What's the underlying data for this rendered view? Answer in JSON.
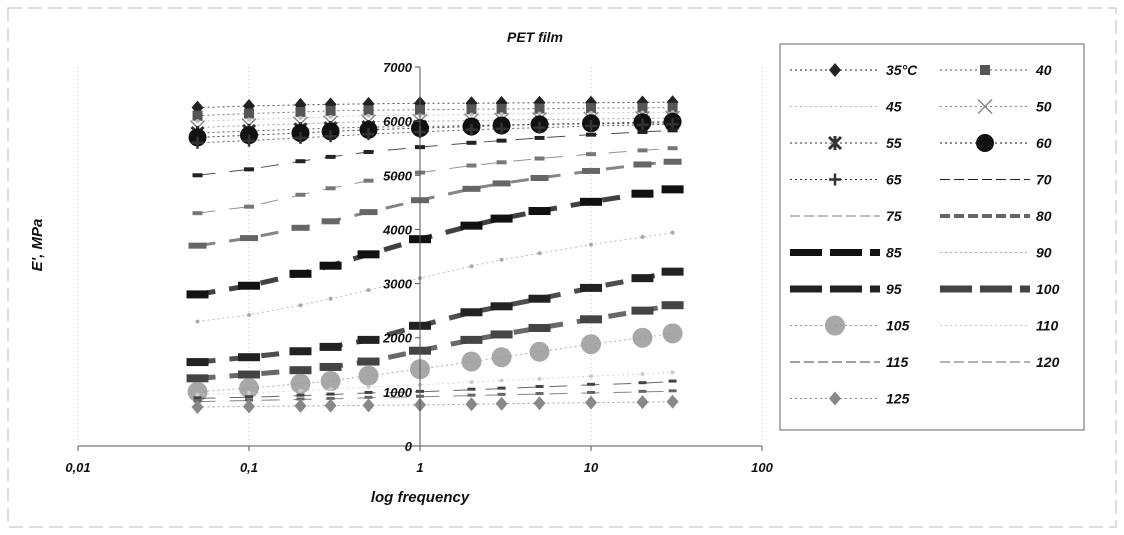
{
  "chart_data": {
    "type": "scatter",
    "title": "PET film",
    "xlabel": "log frequency",
    "ylabel": "E', MPa",
    "xscale": "log",
    "xlim": [
      0.01,
      100
    ],
    "ylim": [
      0,
      7000
    ],
    "xticks": [
      "0,01",
      "0,1",
      "1",
      "10",
      "100"
    ],
    "yticks": [
      "0",
      "1000",
      "2000",
      "3000",
      "4000",
      "5000",
      "6000",
      "7000"
    ],
    "grid": "x-major dotted",
    "legend_position": "right",
    "x": [
      0.05,
      0.1,
      0.2,
      0.3,
      0.5,
      1,
      2,
      3,
      5,
      10,
      20,
      30
    ],
    "series": [
      {
        "name": "35°C",
        "marker": "diamond",
        "color": "#222222",
        "values": [
          6250,
          6280,
          6300,
          6310,
          6320,
          6330,
          6330,
          6335,
          6340,
          6340,
          6345,
          6350
        ]
      },
      {
        "name": "40",
        "marker": "square",
        "color": "#555555",
        "values": [
          6100,
          6140,
          6170,
          6190,
          6200,
          6210,
          6220,
          6225,
          6230,
          6240,
          6245,
          6250
        ]
      },
      {
        "name": "45",
        "marker": "dot",
        "color": "#bbbbbb",
        "values": [
          6000,
          6030,
          6060,
          6080,
          6100,
          6110,
          6120,
          6130,
          6140,
          6150,
          6160,
          6165
        ]
      },
      {
        "name": "50",
        "marker": "x",
        "color": "#888888",
        "values": [
          5880,
          5920,
          5950,
          5970,
          5990,
          6000,
          6010,
          6020,
          6030,
          6040,
          6050,
          6055
        ]
      },
      {
        "name": "55",
        "marker": "star",
        "color": "#333333",
        "values": [
          5780,
          5820,
          5850,
          5870,
          5890,
          5900,
          5920,
          5930,
          5940,
          5950,
          5960,
          5965
        ]
      },
      {
        "name": "60",
        "marker": "circle",
        "color": "#111111",
        "values": [
          5700,
          5740,
          5780,
          5810,
          5840,
          5870,
          5900,
          5920,
          5940,
          5960,
          5980,
          5990
        ]
      },
      {
        "name": "65",
        "marker": "plus",
        "color": "#333333",
        "values": [
          5600,
          5640,
          5690,
          5720,
          5760,
          5800,
          5840,
          5860,
          5880,
          5910,
          5930,
          5945
        ]
      },
      {
        "name": "70",
        "marker": "dash",
        "color": "#222222",
        "values": [
          5000,
          5110,
          5260,
          5340,
          5430,
          5520,
          5600,
          5640,
          5690,
          5750,
          5800,
          5830
        ]
      },
      {
        "name": "75",
        "marker": "dash",
        "color": "#777777",
        "values": [
          4300,
          4420,
          4640,
          4760,
          4900,
          5050,
          5180,
          5240,
          5310,
          5390,
          5460,
          5500
        ]
      },
      {
        "name": "80",
        "marker": "dash-thick",
        "color": "#666666",
        "values": [
          3700,
          3840,
          4030,
          4150,
          4320,
          4540,
          4750,
          4850,
          4950,
          5080,
          5200,
          5250
        ]
      },
      {
        "name": "85",
        "marker": "dash-bold",
        "color": "#111111",
        "values": [
          2800,
          2960,
          3180,
          3330,
          3540,
          3820,
          4070,
          4200,
          4340,
          4510,
          4660,
          4740
        ]
      },
      {
        "name": "90",
        "marker": "dot",
        "color": "#aaaaaa",
        "values": [
          2300,
          2420,
          2600,
          2720,
          2880,
          3100,
          3320,
          3440,
          3560,
          3720,
          3860,
          3940
        ]
      },
      {
        "name": "95",
        "marker": "dash-bold",
        "color": "#222222",
        "values": [
          1550,
          1640,
          1750,
          1830,
          1960,
          2220,
          2470,
          2580,
          2720,
          2920,
          3100,
          3220
        ]
      },
      {
        "name": "100",
        "marker": "dash-bold",
        "color": "#444444",
        "values": [
          1250,
          1320,
          1400,
          1460,
          1560,
          1760,
          1960,
          2060,
          2180,
          2340,
          2500,
          2600
        ]
      },
      {
        "name": "105",
        "marker": "circle-large",
        "color": "#999999",
        "values": [
          1000,
          1070,
          1150,
          1200,
          1300,
          1420,
          1560,
          1640,
          1740,
          1880,
          2000,
          2080
        ]
      },
      {
        "name": "110",
        "marker": "dot",
        "color": "#cccccc",
        "values": [
          950,
          980,
          1020,
          1050,
          1090,
          1130,
          1180,
          1210,
          1240,
          1290,
          1330,
          1360
        ]
      },
      {
        "name": "115",
        "marker": "dash-small",
        "color": "#444444",
        "values": [
          880,
          900,
          930,
          950,
          980,
          1000,
          1040,
          1060,
          1090,
          1130,
          1160,
          1190
        ]
      },
      {
        "name": "120",
        "marker": "dash-small",
        "color": "#666666",
        "values": [
          820,
          840,
          860,
          870,
          890,
          910,
          930,
          945,
          960,
          980,
          1000,
          1010
        ]
      },
      {
        "name": "125",
        "marker": "diamond",
        "color": "#888888",
        "values": [
          720,
          730,
          740,
          745,
          750,
          760,
          770,
          780,
          790,
          800,
          810,
          820
        ]
      }
    ]
  }
}
